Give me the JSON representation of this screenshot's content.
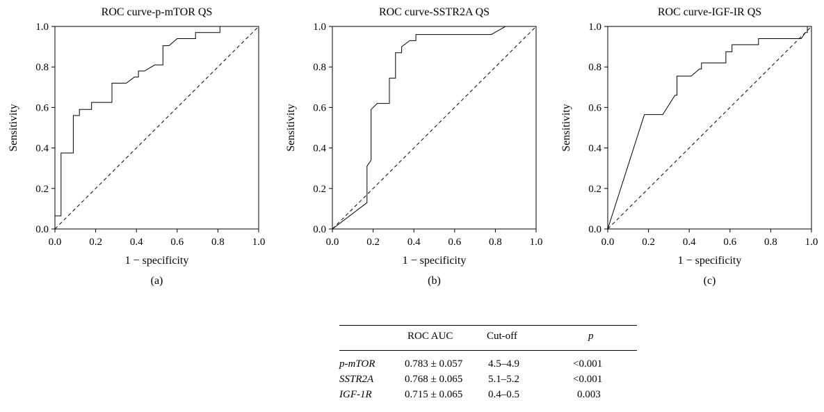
{
  "chart_data": [
    {
      "type": "line",
      "title": "ROC curve-p-mTOR QS",
      "xlabel": "1 − specificity",
      "ylabel": "Sensitivity",
      "xlim": [
        0,
        1
      ],
      "ylim": [
        0,
        1
      ],
      "xticks": [
        "0.0",
        "0.2",
        "0.4",
        "0.6",
        "0.8",
        "1.0"
      ],
      "yticks": [
        "0.0",
        "0.2",
        "0.4",
        "0.6",
        "0.8",
        "1.0"
      ],
      "panel_label": "(a)",
      "series": [
        {
          "values_xy": [
            [
              0,
              0
            ],
            [
              0,
              0.065
            ],
            [
              0.03,
              0.065
            ],
            [
              0.03,
              0.375
            ],
            [
              0.09,
              0.375
            ],
            [
              0.09,
              0.56
            ],
            [
              0.12,
              0.56
            ],
            [
              0.12,
              0.59
            ],
            [
              0.18,
              0.59
            ],
            [
              0.18,
              0.625
            ],
            [
              0.28,
              0.625
            ],
            [
              0.28,
              0.72
            ],
            [
              0.35,
              0.72
            ],
            [
              0.39,
              0.75
            ],
            [
              0.41,
              0.75
            ],
            [
              0.41,
              0.78
            ],
            [
              0.44,
              0.78
            ],
            [
              0.49,
              0.81
            ],
            [
              0.53,
              0.81
            ],
            [
              0.53,
              0.905
            ],
            [
              0.56,
              0.905
            ],
            [
              0.6,
              0.94
            ],
            [
              0.69,
              0.94
            ],
            [
              0.69,
              0.97
            ],
            [
              0.81,
              0.97
            ],
            [
              0.81,
              1.0
            ],
            [
              1.0,
              1.0
            ]
          ]
        },
        {
          "line_style": "dashed",
          "values_xy": [
            [
              0,
              0
            ],
            [
              1,
              1
            ]
          ]
        }
      ]
    },
    {
      "type": "line",
      "title": "ROC curve-SSTR2A QS",
      "xlabel": "1 − specificity",
      "ylabel": "Sensitivity",
      "xlim": [
        0,
        1
      ],
      "ylim": [
        0,
        1
      ],
      "xticks": [
        "0.0",
        "0.2",
        "0.4",
        "0.6",
        "0.8",
        "1.0"
      ],
      "yticks": [
        "0.0",
        "0.2",
        "0.4",
        "0.6",
        "0.8",
        "1.0"
      ],
      "panel_label": "(b)",
      "series": [
        {
          "values_xy": [
            [
              0,
              0
            ],
            [
              0.17,
              0.13
            ],
            [
              0.17,
              0.31
            ],
            [
              0.19,
              0.34
            ],
            [
              0.19,
              0.59
            ],
            [
              0.22,
              0.62
            ],
            [
              0.28,
              0.62
            ],
            [
              0.28,
              0.745
            ],
            [
              0.31,
              0.745
            ],
            [
              0.31,
              0.87
            ],
            [
              0.34,
              0.87
            ],
            [
              0.34,
              0.9
            ],
            [
              0.38,
              0.93
            ],
            [
              0.41,
              0.93
            ],
            [
              0.41,
              0.96
            ],
            [
              0.78,
              0.96
            ],
            [
              0.85,
              1.0
            ],
            [
              1.0,
              1.0
            ]
          ]
        },
        {
          "line_style": "dashed",
          "values_xy": [
            [
              0,
              0
            ],
            [
              1,
              1
            ]
          ]
        }
      ]
    },
    {
      "type": "line",
      "title": "ROC curve-IGF-IR QS",
      "xlabel": "1 − specificity",
      "ylabel": "Sensitivity",
      "xlim": [
        0,
        1
      ],
      "ylim": [
        0,
        1
      ],
      "xticks": [
        "0.0",
        "0.2",
        "0.4",
        "0.6",
        "0.8",
        "1.0"
      ],
      "yticks": [
        "0.0",
        "0.2",
        "0.4",
        "0.6",
        "0.8",
        "1.0"
      ],
      "panel_label": "(c)",
      "series": [
        {
          "values_xy": [
            [
              0,
              0
            ],
            [
              0.18,
              0.565
            ],
            [
              0.27,
              0.565
            ],
            [
              0.33,
              0.66
            ],
            [
              0.34,
              0.66
            ],
            [
              0.34,
              0.755
            ],
            [
              0.41,
              0.755
            ],
            [
              0.45,
              0.79
            ],
            [
              0.46,
              0.79
            ],
            [
              0.46,
              0.82
            ],
            [
              0.58,
              0.82
            ],
            [
              0.58,
              0.875
            ],
            [
              0.61,
              0.875
            ],
            [
              0.61,
              0.91
            ],
            [
              0.65,
              0.91
            ],
            [
              0.65,
              0.91
            ],
            [
              0.74,
              0.91
            ],
            [
              0.74,
              0.94
            ],
            [
              0.95,
              0.94
            ],
            [
              0.97,
              0.97
            ],
            [
              0.98,
              0.97
            ],
            [
              0.98,
              1.0
            ],
            [
              1.0,
              1.0
            ]
          ]
        },
        {
          "line_style": "dashed",
          "values_xy": [
            [
              0,
              0
            ],
            [
              1,
              1
            ]
          ]
        }
      ]
    }
  ],
  "table": {
    "headers": [
      "",
      "ROC AUC",
      "Cut-off",
      "p"
    ],
    "rows": [
      [
        "p-mTOR",
        "0.783 ± 0.057",
        "4.5–4.9",
        "<0.001"
      ],
      [
        "SSTR2A",
        "0.768 ± 0.065",
        "5.1–5.2",
        "<0.001"
      ],
      [
        "IGF-1R",
        "0.715 ± 0.065",
        "0.4–0.5",
        "0.003"
      ]
    ]
  }
}
